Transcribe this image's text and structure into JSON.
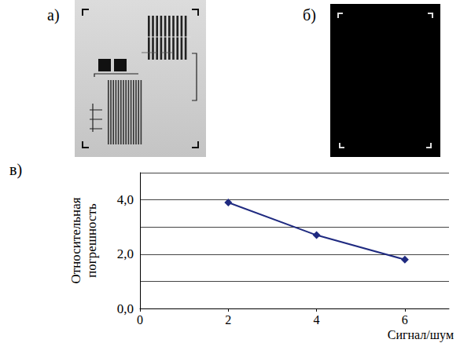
{
  "panel_labels": [
    "а)",
    "б)",
    "в)"
  ],
  "chart_data": {
    "type": "line",
    "x_label": "Сигнал/шум",
    "y_label": "Относительная погрешность",
    "x": [
      2,
      4,
      6
    ],
    "values": [
      3.9,
      2.7,
      1.8
    ],
    "color": "#1f2a80",
    "marker": "diamond",
    "line_style": "solid",
    "xlim": [
      0,
      7
    ],
    "xticks": [
      0,
      2,
      4,
      6
    ],
    "ylim": [
      0,
      5
    ],
    "yticks": [
      {
        "value": 0,
        "label": "0,0"
      },
      {
        "value": 2,
        "label": "2,0"
      },
      {
        "value": 4,
        "label": "4,0"
      }
    ],
    "grid": true
  }
}
